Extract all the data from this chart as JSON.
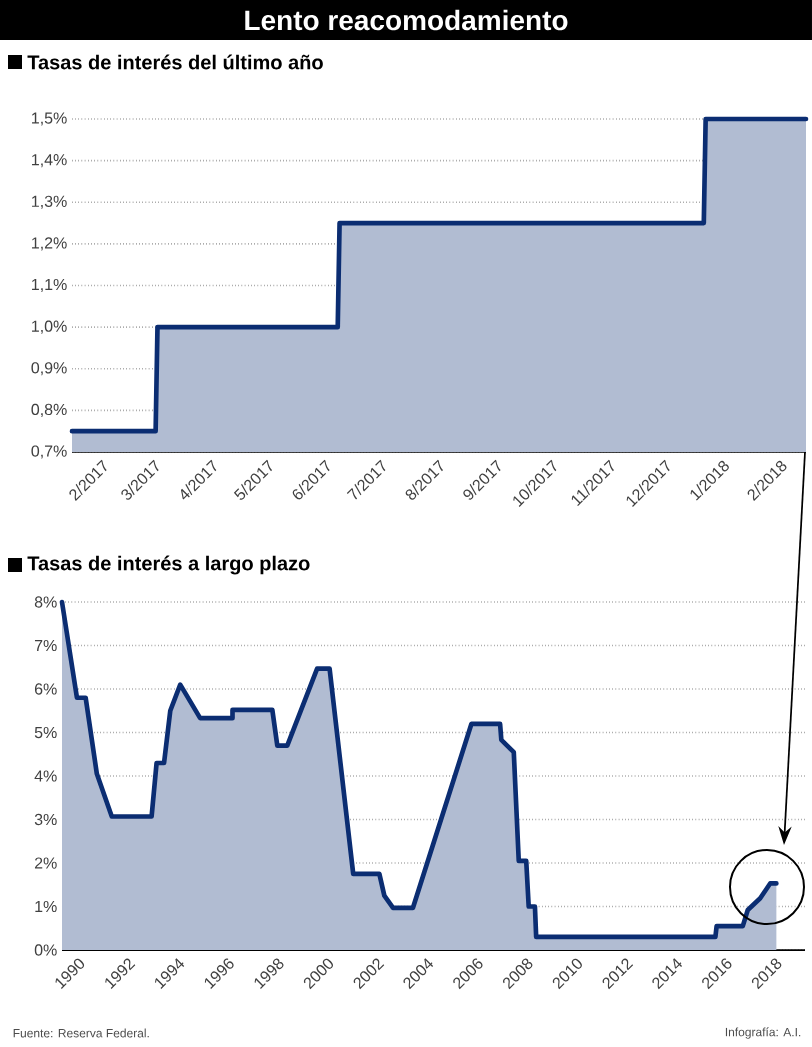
{
  "chart_data": [
    {
      "type": "area",
      "title": "Lento reacomodamiento",
      "subtitle": "Tasas de interés del último año",
      "x": [
        "2017-01-16",
        "2017-03-02",
        "2017-03-03",
        "2017-06-08",
        "2017-06-09",
        "2017-12-22",
        "2017-12-23",
        "2018-02-15"
      ],
      "values": [
        0.75,
        0.75,
        1.0,
        1.0,
        1.25,
        1.25,
        1.5,
        1.5
      ],
      "color": "#0b2d72",
      "xlim": [
        "2017-01-16",
        "2018-02-15"
      ],
      "xticks": [
        {
          "value": "2017-02",
          "label": "2/2017"
        },
        {
          "value": "2017-03",
          "label": "3/2017"
        },
        {
          "value": "2017-04",
          "label": "4/2017"
        },
        {
          "value": "2017-05",
          "label": "5/2017"
        },
        {
          "value": "2017-06",
          "label": "6/2017"
        },
        {
          "value": "2017-07",
          "label": "7/2017"
        },
        {
          "value": "2017-08",
          "label": "8/2017"
        },
        {
          "value": "2017-09",
          "label": "9/2017"
        },
        {
          "value": "2017-10",
          "label": "10/2017"
        },
        {
          "value": "2017-11",
          "label": "11/2017"
        },
        {
          "value": "2017-12",
          "label": "12/2017"
        },
        {
          "value": "2018-01",
          "label": "1/2018"
        },
        {
          "value": "2018-02",
          "label": "2/2018"
        }
      ],
      "ylim": [
        0.7,
        1.5
      ],
      "yticks": [
        {
          "value": 0.7,
          "label": "0,7%"
        },
        {
          "value": 0.8,
          "label": "0,8%"
        },
        {
          "value": 0.9,
          "label": "0,9%"
        },
        {
          "value": 1.0,
          "label": "1,0%"
        },
        {
          "value": 1.1,
          "label": "1,1%"
        },
        {
          "value": 1.2,
          "label": "1,2%"
        },
        {
          "value": 1.3,
          "label": "1,3%"
        },
        {
          "value": 1.4,
          "label": "1,4%"
        },
        {
          "value": 1.5,
          "label": "1,5%"
        }
      ],
      "grid": "y"
    },
    {
      "type": "area",
      "title": "Tasas de interés a largo plazo",
      "x": [
        1989.35,
        1989.95,
        1990.3,
        1990.75,
        1991.35,
        1992.95,
        1993.15,
        1993.45,
        1993.7,
        1994.1,
        1994.9,
        1996.2,
        1996.2,
        1997.8,
        1998.0,
        1998.4,
        1999.6,
        2000.1,
        2001.05,
        2002.1,
        2002.3,
        2002.65,
        2003.45,
        2005.8,
        2006.95,
        2007.0,
        2007.5,
        2007.7,
        2008.0,
        2008.1,
        2008.35,
        2008.4,
        2015.6,
        2015.65,
        2016.7,
        2016.9,
        2017.4,
        2017.8,
        2018.05
      ],
      "values": [
        8.0,
        5.8,
        5.8,
        4.05,
        3.07,
        3.07,
        4.3,
        4.3,
        5.5,
        6.1,
        5.33,
        5.33,
        5.52,
        5.52,
        4.7,
        4.7,
        6.47,
        6.47,
        1.75,
        1.75,
        1.25,
        0.97,
        0.97,
        5.2,
        5.2,
        4.83,
        4.55,
        2.05,
        2.05,
        1.0,
        1.0,
        0.3,
        0.3,
        0.55,
        0.55,
        0.92,
        1.19,
        1.53,
        1.53
      ],
      "color": "#0b2d72",
      "xlim": [
        1989.35,
        2019.2
      ],
      "xticks": [
        1990,
        1992,
        1994,
        1996,
        1998,
        2000,
        2002,
        2004,
        2006,
        2008,
        2010,
        2012,
        2014,
        2016,
        2018
      ],
      "ylim": [
        0,
        8
      ],
      "yticks": [
        {
          "value": 0,
          "label": "0%"
        },
        {
          "value": 1,
          "label": "1%"
        },
        {
          "value": 2,
          "label": "2%"
        },
        {
          "value": 3,
          "label": "3%"
        },
        {
          "value": 4,
          "label": "4%"
        },
        {
          "value": 5,
          "label": "5%"
        },
        {
          "value": 6,
          "label": "6%"
        },
        {
          "value": 7,
          "label": "7%"
        },
        {
          "value": 8,
          "label": "8%"
        }
      ],
      "grid": "y",
      "annotations": [
        "Fuente: Reserva Federal.",
        "Infografía: A.I."
      ]
    }
  ]
}
